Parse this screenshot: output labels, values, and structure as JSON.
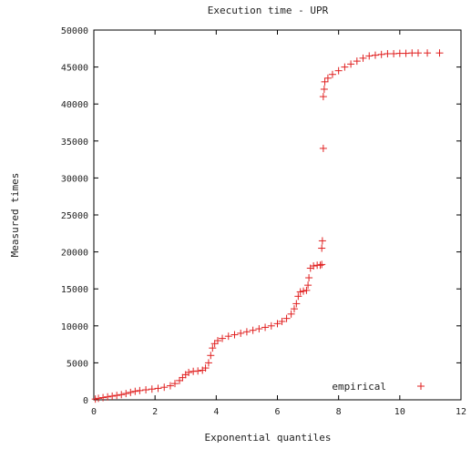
{
  "chart_data": {
    "type": "scatter",
    "title": "Execution time - UPR",
    "xlabel": "Exponential quantiles",
    "ylabel": "Measured times",
    "xlim": [
      0,
      12
    ],
    "ylim": [
      0,
      50000
    ],
    "x_ticks": [
      "0",
      "2",
      "4",
      "6",
      "8",
      "10",
      "12"
    ],
    "y_ticks": [
      "0",
      "5000",
      "10000",
      "15000",
      "20000",
      "25000",
      "30000",
      "35000",
      "40000",
      "45000",
      "50000"
    ],
    "x_tick_values": [
      0,
      2,
      4,
      6,
      8,
      10,
      12
    ],
    "y_tick_values": [
      0,
      5000,
      10000,
      15000,
      20000,
      25000,
      30000,
      35000,
      40000,
      45000,
      50000
    ],
    "grid": false,
    "legend": {
      "position": "bottom-right",
      "entries": [
        "empirical"
      ]
    },
    "marker": "+",
    "color": "#e02020",
    "series": [
      {
        "name": "empirical",
        "points": [
          [
            0.05,
            100
          ],
          [
            0.15,
            200
          ],
          [
            0.3,
            300
          ],
          [
            0.45,
            400
          ],
          [
            0.6,
            500
          ],
          [
            0.75,
            600
          ],
          [
            0.9,
            700
          ],
          [
            1.05,
            850
          ],
          [
            1.2,
            1000
          ],
          [
            1.35,
            1150
          ],
          [
            1.5,
            1250
          ],
          [
            1.7,
            1350
          ],
          [
            1.9,
            1450
          ],
          [
            2.1,
            1550
          ],
          [
            2.3,
            1700
          ],
          [
            2.5,
            1900
          ],
          [
            2.65,
            2200
          ],
          [
            2.8,
            2600
          ],
          [
            2.9,
            3000
          ],
          [
            3.0,
            3400
          ],
          [
            3.1,
            3700
          ],
          [
            3.25,
            3850
          ],
          [
            3.4,
            3900
          ],
          [
            3.55,
            4000
          ],
          [
            3.65,
            4300
          ],
          [
            3.75,
            5000
          ],
          [
            3.82,
            6000
          ],
          [
            3.88,
            7000
          ],
          [
            3.95,
            7600
          ],
          [
            4.05,
            8000
          ],
          [
            4.2,
            8300
          ],
          [
            4.4,
            8600
          ],
          [
            4.6,
            8800
          ],
          [
            4.8,
            9000
          ],
          [
            5.0,
            9200
          ],
          [
            5.2,
            9400
          ],
          [
            5.4,
            9600
          ],
          [
            5.6,
            9800
          ],
          [
            5.8,
            10000
          ],
          [
            6.0,
            10300
          ],
          [
            6.15,
            10600
          ],
          [
            6.3,
            11000
          ],
          [
            6.45,
            11600
          ],
          [
            6.55,
            12300
          ],
          [
            6.62,
            13000
          ],
          [
            6.68,
            14000
          ],
          [
            6.75,
            14600
          ],
          [
            6.85,
            14700
          ],
          [
            6.95,
            14800
          ],
          [
            7.0,
            15500
          ],
          [
            7.03,
            16500
          ],
          [
            7.08,
            17800
          ],
          [
            7.18,
            18100
          ],
          [
            7.3,
            18200
          ],
          [
            7.4,
            18200
          ],
          [
            7.45,
            18300
          ],
          [
            7.45,
            20500
          ],
          [
            7.47,
            21500
          ],
          [
            7.5,
            34000
          ],
          [
            7.5,
            41000
          ],
          [
            7.53,
            42000
          ],
          [
            7.55,
            43000
          ],
          [
            7.65,
            43500
          ],
          [
            7.8,
            44000
          ],
          [
            8.0,
            44500
          ],
          [
            8.2,
            45000
          ],
          [
            8.4,
            45400
          ],
          [
            8.6,
            45800
          ],
          [
            8.8,
            46200
          ],
          [
            9.0,
            46500
          ],
          [
            9.2,
            46600
          ],
          [
            9.4,
            46700
          ],
          [
            9.6,
            46800
          ],
          [
            9.8,
            46800
          ],
          [
            10.0,
            46850
          ],
          [
            10.2,
            46850
          ],
          [
            10.4,
            46900
          ],
          [
            10.6,
            46900
          ],
          [
            10.9,
            46900
          ],
          [
            11.3,
            46900
          ]
        ]
      }
    ]
  }
}
